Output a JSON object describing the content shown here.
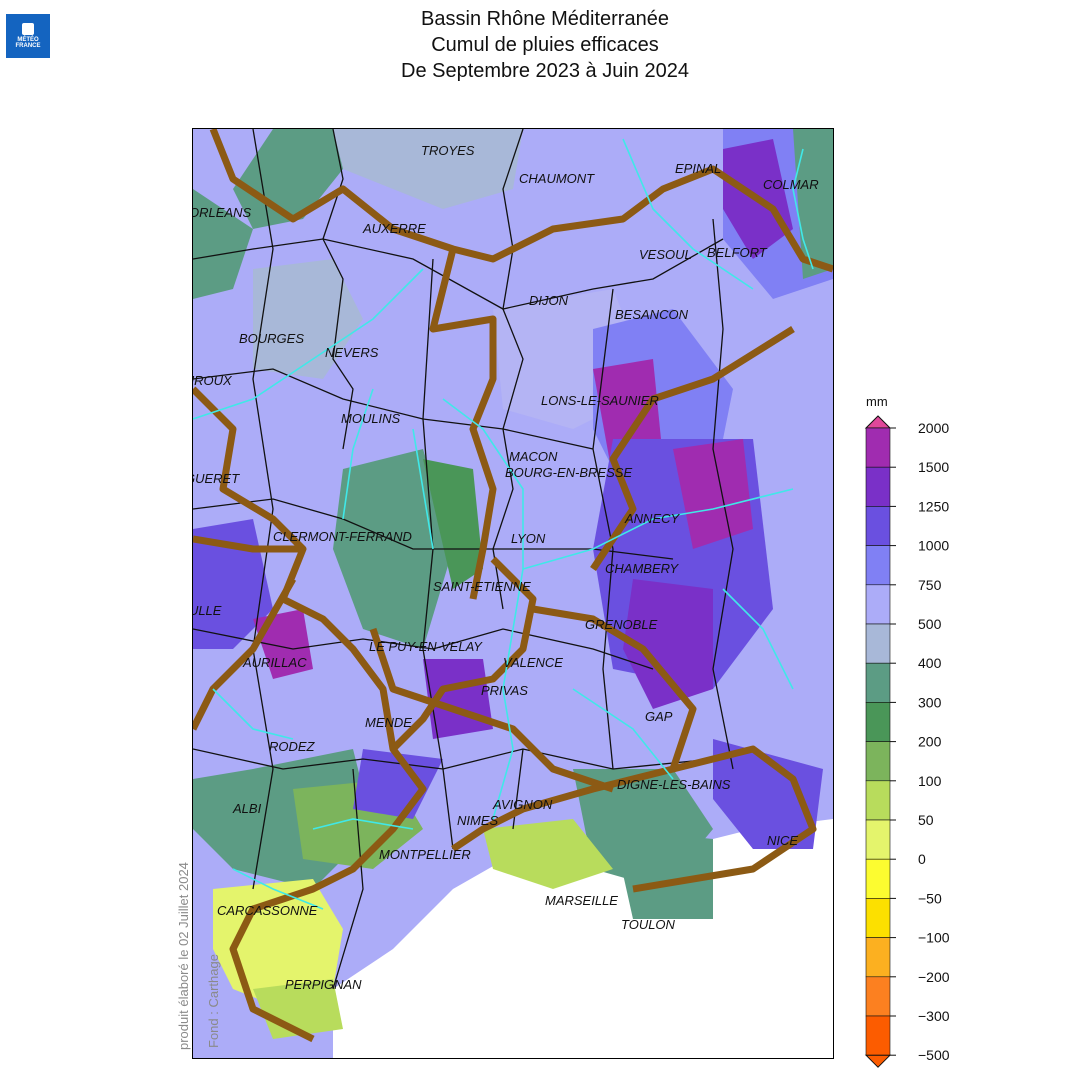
{
  "header": {
    "logo_line1": "MÉTÉO",
    "logo_line2": "FRANCE",
    "title": "Bassin Rhône Méditerranée",
    "subtitle": "Cumul de pluies efficaces",
    "period": "De Septembre 2023 à Juin 2024"
  },
  "credit": {
    "produced": "produit élaboré le 02 Juillet 2024",
    "base": "Fond : Carthage"
  },
  "legend": {
    "unit": "mm",
    "classes": [
      {
        "label": "2000",
        "color": "#e0489a"
      },
      {
        "label": "1500",
        "color": "#a02cb0"
      },
      {
        "label": "1250",
        "color": "#7a30c8"
      },
      {
        "label": "1000",
        "color": "#6a50e0"
      },
      {
        "label": "750",
        "color": "#8080f4"
      },
      {
        "label": "500",
        "color": "#acacf8"
      },
      {
        "label": "400",
        "color": "#a8b8d8"
      },
      {
        "label": "300",
        "color": "#5c9c84"
      },
      {
        "label": "200",
        "color": "#4a9658"
      },
      {
        "label": "100",
        "color": "#7cb45c"
      },
      {
        "label": "50",
        "color": "#b8dc5c"
      },
      {
        "label": "0",
        "color": "#e4f46c"
      },
      {
        "label": "−50",
        "color": "#fcfc30"
      },
      {
        "label": "−100",
        "color": "#fce000"
      },
      {
        "label": "−200",
        "color": "#fcb020"
      },
      {
        "label": "−300",
        "color": "#fc8020"
      },
      {
        "label": "−500",
        "color": "#fc5c00"
      }
    ]
  },
  "cities": [
    {
      "name": "TROYES",
      "id": "troyes"
    },
    {
      "name": "CHAUMONT",
      "id": "chaumont"
    },
    {
      "name": "EPINAL",
      "id": "epinal"
    },
    {
      "name": "COLMAR",
      "id": "colmar"
    },
    {
      "name": "ORLEANS",
      "id": "orleans"
    },
    {
      "name": "AUXERRE",
      "id": "auxerre"
    },
    {
      "name": "VESOUL",
      "id": "vesoul"
    },
    {
      "name": "BELFORT",
      "id": "belfort"
    },
    {
      "name": "DIJON",
      "id": "dijon"
    },
    {
      "name": "BESANCON",
      "id": "besancon"
    },
    {
      "name": "BOURGES",
      "id": "bourges"
    },
    {
      "name": "NEVERS",
      "id": "nevers"
    },
    {
      "name": "CHATEAUROUX",
      "id": "chateauroux"
    },
    {
      "name": "LONS-LE-SAUNIER",
      "id": "lons"
    },
    {
      "name": "MOULINS",
      "id": "moulins"
    },
    {
      "name": "MACON",
      "id": "macon"
    },
    {
      "name": "BOURG-EN-BRESSE",
      "id": "bourg"
    },
    {
      "name": "GUERET",
      "id": "gueret"
    },
    {
      "name": "ANNECY",
      "id": "annecy"
    },
    {
      "name": "CLERMONT-FERRAND",
      "id": "clermont"
    },
    {
      "name": "LYON",
      "id": "lyon"
    },
    {
      "name": "CHAMBERY",
      "id": "chambery"
    },
    {
      "name": "SAINT-ETIENNE",
      "id": "stetienne"
    },
    {
      "name": "TULLE",
      "id": "tulle"
    },
    {
      "name": "GRENOBLE",
      "id": "grenoble"
    },
    {
      "name": "LE PUY-EN-VELAY",
      "id": "lepuy"
    },
    {
      "name": "AURILLAC",
      "id": "aurillac"
    },
    {
      "name": "VALENCE",
      "id": "valence"
    },
    {
      "name": "PRIVAS",
      "id": "privas"
    },
    {
      "name": "GAP",
      "id": "gap"
    },
    {
      "name": "MENDE",
      "id": "mende"
    },
    {
      "name": "RODEZ",
      "id": "rodez"
    },
    {
      "name": "DIGNE-LES-BAINS",
      "id": "digne"
    },
    {
      "name": "ALBI",
      "id": "albi"
    },
    {
      "name": "AVIGNON",
      "id": "avignon"
    },
    {
      "name": "NIMES",
      "id": "nimes"
    },
    {
      "name": "NICE",
      "id": "nice"
    },
    {
      "name": "MONTPELLIER",
      "id": "montpellier"
    },
    {
      "name": "CARCASSONNE",
      "id": "carcassonne"
    },
    {
      "name": "MARSEILLE",
      "id": "marseille"
    },
    {
      "name": "TOULON",
      "id": "toulon"
    },
    {
      "name": "PERPIGNAN",
      "id": "perpignan"
    }
  ]
}
